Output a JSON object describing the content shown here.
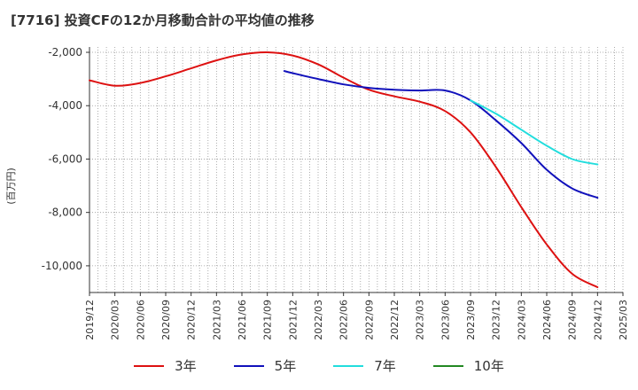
{
  "title": "[7716]  投資CFの12か月移動合計の平均値の推移",
  "chart_data": {
    "type": "line",
    "title": "[7716]  投資CFの12か月移動合計の平均値の推移",
    "ylabel": "(百万円)",
    "xlabel": "",
    "ylim": [
      -11000,
      -1800
    ],
    "yticks": [
      -2000,
      -4000,
      -6000,
      -8000,
      -10000
    ],
    "ytick_labels": [
      "-2,000",
      "-4,000",
      "-6,000",
      "-8,000",
      "-10,000"
    ],
    "xticks": [
      "2019/12",
      "2020/03",
      "2020/06",
      "2020/09",
      "2020/12",
      "2021/03",
      "2021/06",
      "2021/09",
      "2021/12",
      "2022/03",
      "2022/06",
      "2022/09",
      "2022/12",
      "2023/03",
      "2023/06",
      "2023/09",
      "2023/12",
      "2024/03",
      "2024/06",
      "2024/09",
      "2024/12",
      "2025/03"
    ],
    "grid": true,
    "legend_position": "bottom",
    "series": [
      {
        "name": "3年",
        "color": "#dd1111",
        "points": [
          [
            "2019/12",
            -3050
          ],
          [
            "2020/03",
            -3250
          ],
          [
            "2020/06",
            -3150
          ],
          [
            "2020/09",
            -2900
          ],
          [
            "2020/12",
            -2600
          ],
          [
            "2021/03",
            -2300
          ],
          [
            "2021/06",
            -2080
          ],
          [
            "2021/09",
            -2000
          ],
          [
            "2021/12",
            -2120
          ],
          [
            "2022/03",
            -2450
          ],
          [
            "2022/06",
            -2950
          ],
          [
            "2022/09",
            -3400
          ],
          [
            "2022/12",
            -3650
          ],
          [
            "2023/03",
            -3850
          ],
          [
            "2023/06",
            -4200
          ],
          [
            "2023/09",
            -5000
          ],
          [
            "2023/12",
            -6300
          ],
          [
            "2024/03",
            -7800
          ],
          [
            "2024/06",
            -9200
          ],
          [
            "2024/09",
            -10300
          ],
          [
            "2024/12",
            -10800
          ]
        ]
      },
      {
        "name": "5年",
        "color": "#1111bb",
        "points": [
          [
            "2021/11",
            -2700
          ],
          [
            "2021/12",
            -2780
          ],
          [
            "2022/03",
            -3000
          ],
          [
            "2022/06",
            -3200
          ],
          [
            "2022/09",
            -3330
          ],
          [
            "2022/12",
            -3400
          ],
          [
            "2023/03",
            -3430
          ],
          [
            "2023/06",
            -3430
          ],
          [
            "2023/09",
            -3800
          ],
          [
            "2023/12",
            -4550
          ],
          [
            "2024/03",
            -5400
          ],
          [
            "2024/06",
            -6400
          ],
          [
            "2024/09",
            -7100
          ],
          [
            "2024/12",
            -7450
          ]
        ]
      },
      {
        "name": "7年",
        "color": "#22dddd",
        "points": [
          [
            "2023/09",
            -3800
          ],
          [
            "2023/12",
            -4300
          ],
          [
            "2024/03",
            -4900
          ],
          [
            "2024/06",
            -5500
          ],
          [
            "2024/09",
            -6000
          ],
          [
            "2024/12",
            -6200
          ]
        ]
      },
      {
        "name": "10年",
        "color": "#228822",
        "points": []
      }
    ]
  }
}
